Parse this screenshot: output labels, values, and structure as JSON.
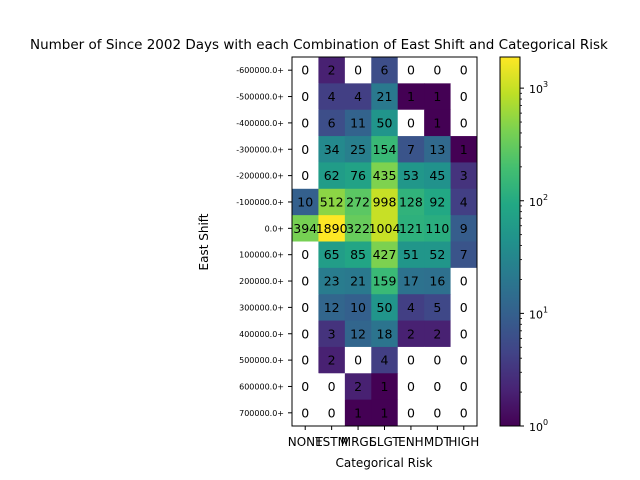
{
  "chart_data": {
    "type": "heatmap",
    "title": "Number of Since 2002 Days with each Combination of East Shift and Categorical Risk",
    "xlabel": "Categorical Risk",
    "ylabel": "East Shift",
    "x_categories": [
      "NONE",
      "TSTM",
      "MRGL",
      "SLGT",
      "ENH",
      "MDT",
      "HIGH"
    ],
    "y_categories": [
      "-600000.0+",
      "-500000.0+",
      "-400000.0+",
      "-300000.0+",
      "-200000.0+",
      "-100000.0+",
      "0.0+",
      "100000.0+",
      "200000.0+",
      "300000.0+",
      "400000.0+",
      "500000.0+",
      "600000.0+",
      "700000.0+"
    ],
    "values": [
      [
        0,
        2,
        0,
        6,
        0,
        0,
        0
      ],
      [
        0,
        4,
        4,
        21,
        1,
        1,
        0
      ],
      [
        0,
        6,
        11,
        50,
        0,
        1,
        0
      ],
      [
        0,
        34,
        25,
        154,
        7,
        13,
        1
      ],
      [
        0,
        62,
        76,
        435,
        53,
        45,
        3
      ],
      [
        10,
        512,
        272,
        998,
        128,
        92,
        4
      ],
      [
        394,
        1890,
        322,
        1004,
        121,
        110,
        9
      ],
      [
        0,
        65,
        85,
        427,
        51,
        52,
        7
      ],
      [
        0,
        23,
        21,
        159,
        17,
        16,
        0
      ],
      [
        0,
        12,
        10,
        50,
        4,
        5,
        0
      ],
      [
        0,
        3,
        12,
        18,
        2,
        2,
        0
      ],
      [
        0,
        2,
        0,
        4,
        0,
        0,
        0
      ],
      [
        0,
        0,
        2,
        1,
        0,
        0,
        0
      ],
      [
        0,
        0,
        1,
        1,
        0,
        0,
        0
      ]
    ],
    "color_scale": "log",
    "colormap": "viridis",
    "colorbar_range": [
      1,
      1890
    ],
    "colorbar_ticks": [
      {
        "value": 1,
        "base": "10",
        "exp": "0"
      },
      {
        "value": 10,
        "base": "10",
        "exp": "1"
      },
      {
        "value": 100,
        "base": "10",
        "exp": "2"
      },
      {
        "value": 1000,
        "base": "10",
        "exp": "3"
      }
    ],
    "zero_cell_color": "#ffffff"
  }
}
